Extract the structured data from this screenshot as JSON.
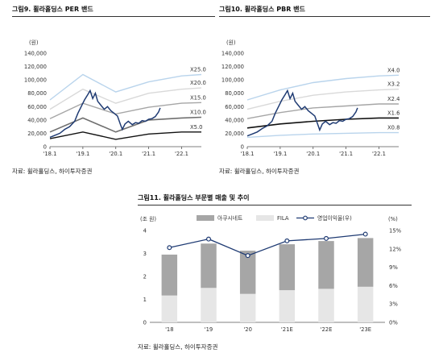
{
  "charts": [
    {
      "figure_title": "그림9.  휠라홀딩스 PER 밴드",
      "source": "자료: 휠라홀딩스, 하이투자증권",
      "unit_label": "(원)"
    },
    {
      "figure_title": "그림10.  휠라홀딩스 PBR 밴드",
      "source": "자료: 휠라홀딩스, 하이투자증권",
      "unit_label": "(원)"
    },
    {
      "figure_title": "그림11.  휠라홀딩스 부문별 매출 및 추이",
      "source": "자료: 휠라홀딩스, 하이투자증권",
      "unit_label": "(조 원)",
      "right_unit_label": "(%)"
    }
  ],
  "chart_data": [
    {
      "type": "line",
      "ylim": [
        0,
        140000
      ],
      "yticks": [
        0,
        20000,
        40000,
        60000,
        80000,
        100000,
        120000,
        140000
      ],
      "ytick_labels": [
        "0",
        "20,000",
        "40,000",
        "60,000",
        "80,000",
        "100,000",
        "120,000",
        "140,000"
      ],
      "xticks": [
        "'18.1",
        "'19.1",
        "'20.1",
        "'21.1",
        "'22.1"
      ],
      "colors": {
        "price": "#1f3b73",
        "b0": "#b9d4ec",
        "b1": "#d9d9d9",
        "b2": "#a6a6a6",
        "b3": "#6f6f6f",
        "b4": "#111111"
      },
      "bands": [
        {
          "label": "X25.0",
          "values": [
            70000,
            108000,
            82000,
            97000,
            106000,
            108000
          ]
        },
        {
          "label": "X20.0",
          "values": [
            56000,
            86000,
            65000,
            80000,
            86000,
            88000
          ]
        },
        {
          "label": "X15.0",
          "values": [
            42000,
            65000,
            49000,
            59000,
            65000,
            66000
          ]
        },
        {
          "label": "X10.0",
          "values": [
            22000,
            43000,
            22000,
            40000,
            43000,
            44000
          ]
        },
        {
          "label": "X5.0",
          "values": [
            12000,
            22000,
            11000,
            19000,
            22000,
            22000
          ]
        }
      ],
      "band_x": [
        2018.0,
        2019.0,
        2020.0,
        2021.0,
        2022.0,
        2022.6
      ],
      "price": [
        [
          2018.0,
          14000
        ],
        [
          2018.15,
          17000
        ],
        [
          2018.3,
          20000
        ],
        [
          2018.45,
          26000
        ],
        [
          2018.6,
          30000
        ],
        [
          2018.75,
          38000
        ],
        [
          2018.85,
          50000
        ],
        [
          2018.95,
          60000
        ],
        [
          2019.05,
          70000
        ],
        [
          2019.15,
          78000
        ],
        [
          2019.22,
          84000
        ],
        [
          2019.3,
          72000
        ],
        [
          2019.38,
          80000
        ],
        [
          2019.45,
          68000
        ],
        [
          2019.55,
          62000
        ],
        [
          2019.65,
          56000
        ],
        [
          2019.75,
          60000
        ],
        [
          2019.85,
          54000
        ],
        [
          2019.95,
          50000
        ],
        [
          2020.05,
          46000
        ],
        [
          2020.15,
          32000
        ],
        [
          2020.2,
          26000
        ],
        [
          2020.28,
          34000
        ],
        [
          2020.38,
          38000
        ],
        [
          2020.5,
          33000
        ],
        [
          2020.6,
          36000
        ],
        [
          2020.7,
          35000
        ],
        [
          2020.8,
          39000
        ],
        [
          2020.9,
          38000
        ],
        [
          2021.0,
          41000
        ],
        [
          2021.1,
          42000
        ],
        [
          2021.2,
          45000
        ],
        [
          2021.3,
          52000
        ],
        [
          2021.35,
          58000
        ]
      ]
    },
    {
      "type": "line",
      "ylim": [
        0,
        140000
      ],
      "yticks": [
        0,
        20000,
        40000,
        60000,
        80000,
        100000,
        120000,
        140000
      ],
      "ytick_labels": [
        "0",
        "20,000",
        "40,000",
        "60,000",
        "80,000",
        "100,000",
        "120,000",
        "140,000"
      ],
      "xticks": [
        "'18.1",
        "'19.1",
        "'20.1",
        "'21.1",
        "'22.1"
      ],
      "colors": {
        "price": "#1f3b73",
        "b0": "#b9d4ec",
        "b1": "#d9d9d9",
        "b2": "#a6a6a6",
        "b3": "#111111",
        "b4": "#b9d4ec"
      },
      "bands": [
        {
          "label": "X4.0",
          "values": [
            70000,
            85000,
            96000,
            102000,
            106000,
            107000
          ]
        },
        {
          "label": "X3.2",
          "values": [
            56000,
            68000,
            77000,
            82000,
            85000,
            86000
          ]
        },
        {
          "label": "X2.4",
          "values": [
            42000,
            51000,
            58000,
            61000,
            64000,
            64000
          ]
        },
        {
          "label": "X1.6",
          "values": [
            28000,
            34000,
            38000,
            41000,
            43000,
            43000
          ]
        },
        {
          "label": "X0.8",
          "values": [
            14000,
            17000,
            19000,
            20000,
            21000,
            21000
          ]
        }
      ],
      "band_x": [
        2018.0,
        2019.0,
        2020.0,
        2021.0,
        2022.0,
        2022.6
      ],
      "price": [
        [
          2018.0,
          16000
        ],
        [
          2018.15,
          19000
        ],
        [
          2018.3,
          22000
        ],
        [
          2018.45,
          27000
        ],
        [
          2018.6,
          31000
        ],
        [
          2018.75,
          38000
        ],
        [
          2018.85,
          50000
        ],
        [
          2018.95,
          60000
        ],
        [
          2019.05,
          70000
        ],
        [
          2019.15,
          78000
        ],
        [
          2019.22,
          84000
        ],
        [
          2019.3,
          72000
        ],
        [
          2019.38,
          80000
        ],
        [
          2019.45,
          68000
        ],
        [
          2019.55,
          62000
        ],
        [
          2019.65,
          56000
        ],
        [
          2019.75,
          60000
        ],
        [
          2019.85,
          54000
        ],
        [
          2019.95,
          50000
        ],
        [
          2020.05,
          46000
        ],
        [
          2020.15,
          32000
        ],
        [
          2020.2,
          25000
        ],
        [
          2020.28,
          34000
        ],
        [
          2020.38,
          38000
        ],
        [
          2020.5,
          33000
        ],
        [
          2020.6,
          36000
        ],
        [
          2020.7,
          35000
        ],
        [
          2020.8,
          39000
        ],
        [
          2020.9,
          38000
        ],
        [
          2021.0,
          41000
        ],
        [
          2021.1,
          42000
        ],
        [
          2021.2,
          45000
        ],
        [
          2021.3,
          52000
        ],
        [
          2021.35,
          58000
        ]
      ]
    },
    {
      "type": "bar",
      "categories": [
        "'18",
        "'19",
        "'20",
        "'21E",
        "'22E",
        "'23E"
      ],
      "series": [
        {
          "name": "아쿠시네트",
          "values": [
            1.78,
            1.93,
            1.88,
            2.0,
            2.08,
            2.12
          ],
          "color": "#a6a6a6"
        },
        {
          "name": "FILA",
          "values": [
            1.17,
            1.5,
            1.24,
            1.4,
            1.46,
            1.55
          ],
          "color": "#e6e6e6"
        }
      ],
      "line_series": {
        "name": "영업이익율(우)",
        "values": [
          12.2,
          13.6,
          10.9,
          13.3,
          13.7,
          14.4
        ],
        "color": "#1f3b73"
      },
      "ylim": [
        0,
        4
      ],
      "yticks": [
        "0",
        "1",
        "2",
        "3",
        "4"
      ],
      "y2lim": [
        0,
        15
      ],
      "y2ticks": [
        "0%",
        "3%",
        "6%",
        "9%",
        "12%",
        "15%"
      ]
    }
  ]
}
